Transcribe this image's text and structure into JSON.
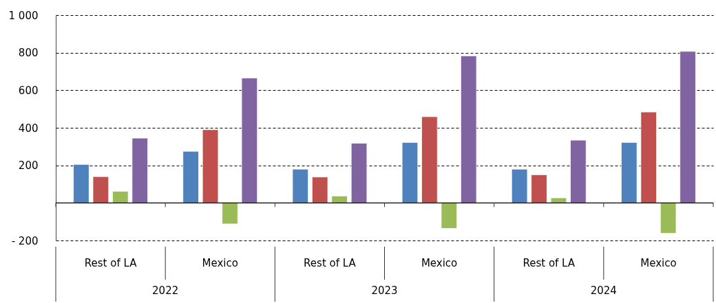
{
  "chart_data": {
    "type": "bar",
    "categories": [
      "Rest of LA",
      "Mexico",
      "Rest of LA",
      "Mexico",
      "Rest of LA",
      "Mexico"
    ],
    "series": [
      {
        "color": "#4f81bd",
        "values": [
          205,
          275,
          180,
          322,
          180,
          322
        ]
      },
      {
        "color": "#c0504d",
        "values": [
          140,
          390,
          138,
          459,
          150,
          484
        ]
      },
      {
        "color": "#9bbb59",
        "values": [
          62,
          -112,
          37,
          -136,
          27,
          -162
        ]
      },
      {
        "color": "#8064a2",
        "values": [
          345,
          665,
          318,
          783,
          334,
          807
        ]
      }
    ],
    "annotations": [
      "2022",
      "2023",
      "2024"
    ],
    "ylim": [
      -200,
      1000
    ],
    "yticks": [
      {
        "value": -200,
        "label": "- 200"
      },
      {
        "value": 0,
        "label": null
      },
      200,
      400,
      600,
      800,
      {
        "value": 1000,
        "label": "1 000"
      }
    ],
    "grid": "y"
  }
}
